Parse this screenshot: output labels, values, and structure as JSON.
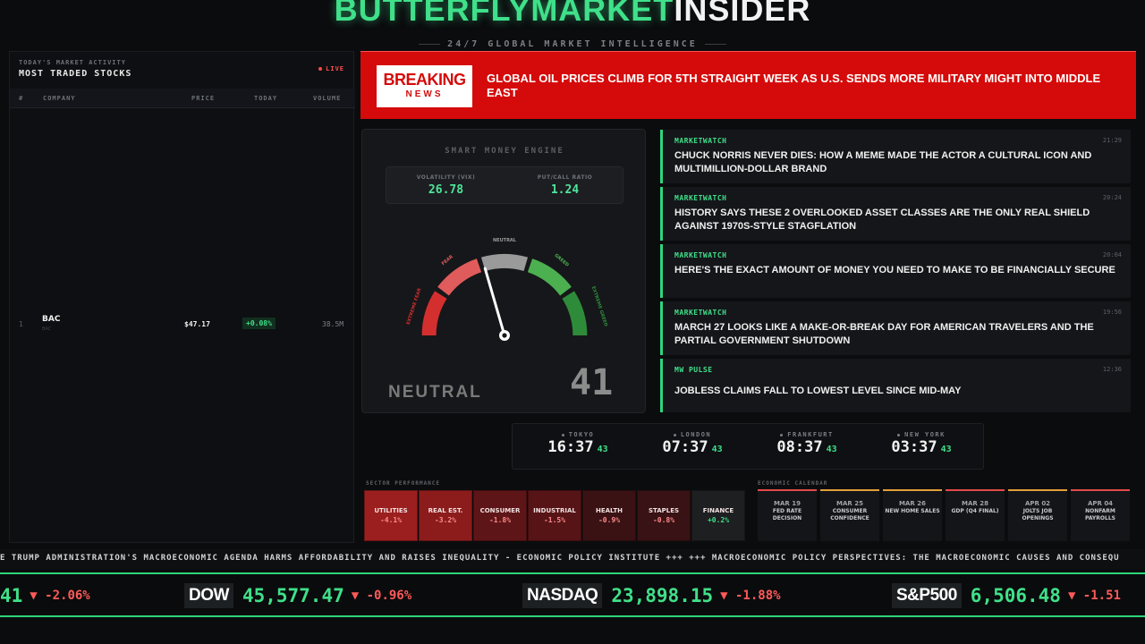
{
  "brand": {
    "green": "BUTTERFLYMARKET",
    "white": "INSIDER",
    "tagline": "24/7 GLOBAL MARKET INTELLIGENCE"
  },
  "left_panel": {
    "subtitle": "TODAY'S MARKET ACTIVITY",
    "title": "MOST TRADED STOCKS",
    "live": "LIVE",
    "columns": [
      "#",
      "COMPANY",
      "PRICE",
      "TODAY",
      "VOLUME"
    ],
    "rows": [
      {
        "rank": "1",
        "name": "BAC",
        "ticker": "BAC",
        "price": "$47.17",
        "change": "+0.08%",
        "volume": "38.5M"
      }
    ]
  },
  "breaking": {
    "label1": "BREAKING",
    "label2": "NEWS",
    "headline": "GLOBAL OIL PRICES CLIMB FOR 5TH STRAIGHT WEEK AS U.S. SENDS MORE MILITARY MIGHT INTO MIDDLE EAST"
  },
  "gauge": {
    "title": "SMART MONEY ENGINE",
    "vix_label": "VOLATILITY (VIX)",
    "vix_value": "26.78",
    "pc_label": "PUT/CALL RATIO",
    "pc_value": "1.24",
    "zones": [
      "EXTREME FEAR",
      "FEAR",
      "NEUTRAL",
      "GREED",
      "EXTREME GREED"
    ],
    "state": "NEUTRAL",
    "score": "41",
    "score_value": 41,
    "colors": {
      "extreme_fear": "#d42f2f",
      "fear": "#e05b5b",
      "neutral": "#9a9a9a",
      "greed": "#4caf50",
      "extreme_greed": "#2e8b3a"
    }
  },
  "news": [
    {
      "source": "MARKETWATCH",
      "time": "21:29",
      "headline": "CHUCK NORRIS NEVER DIES: HOW A MEME MADE THE ACTOR A CULTURAL ICON AND MULTIMILLION-DOLLAR BRAND"
    },
    {
      "source": "MARKETWATCH",
      "time": "20:24",
      "headline": "HISTORY SAYS THESE 2 OVERLOOKED ASSET CLASSES ARE THE ONLY REAL SHIELD AGAINST 1970S-STYLE STAGFLATION"
    },
    {
      "source": "MARKETWATCH",
      "time": "20:04",
      "headline": "HERE'S THE EXACT AMOUNT OF MONEY YOU NEED TO MAKE TO BE FINANCIALLY SECURE"
    },
    {
      "source": "MARKETWATCH",
      "time": "19:56",
      "headline": "MARCH 27 LOOKS LIKE A MAKE-OR-BREAK DAY FOR AMERICAN TRAVELERS AND THE PARTIAL GOVERNMENT SHUTDOWN"
    },
    {
      "source": "MW PULSE",
      "time": "12:36",
      "headline": "JOBLESS CLAIMS FALL TO LOWEST LEVEL SINCE MID-MAY"
    }
  ],
  "clocks": [
    {
      "city": "TOKYO",
      "time": "16:37",
      "seconds": "43"
    },
    {
      "city": "LONDON",
      "time": "07:37",
      "seconds": "43"
    },
    {
      "city": "FRANKFURT",
      "time": "08:37",
      "seconds": "43"
    },
    {
      "city": "NEW YORK",
      "time": "03:37",
      "seconds": "43"
    }
  ],
  "sectors": {
    "label": "SECTOR PERFORMANCE",
    "items": [
      {
        "name": "UTILITIES",
        "change": "-4.1%",
        "color": "#9b1f1f"
      },
      {
        "name": "REAL EST.",
        "change": "-3.2%",
        "color": "#8c1c1c"
      },
      {
        "name": "CONSUMER",
        "change": "-1.8%",
        "color": "#5e1517"
      },
      {
        "name": "INDUSTRIAL",
        "change": "-1.5%",
        "color": "#561416"
      },
      {
        "name": "HEALTH",
        "change": "-0.9%",
        "color": "#3a1214"
      },
      {
        "name": "STAPLES",
        "change": "-0.8%",
        "color": "#381214"
      },
      {
        "name": "FINANCE",
        "change": "+0.2%",
        "color": "#1d1f21"
      }
    ]
  },
  "calendar": {
    "label": "ECONOMIC CALENDAR",
    "items": [
      {
        "date": "MAR 19",
        "event": "FED RATE DECISION",
        "color": "#e24b4b"
      },
      {
        "date": "MAR 25",
        "event": "CONSUMER CONFIDENCE",
        "color": "#e2a03a"
      },
      {
        "date": "MAR 26",
        "event": "NEW HOME SALES",
        "color": "#e2a03a"
      },
      {
        "date": "MAR 28",
        "event": "GDP (Q4 FINAL)",
        "color": "#e24b4b"
      },
      {
        "date": "APR 02",
        "event": "JOLTS JOB OPENINGS",
        "color": "#e2a03a"
      },
      {
        "date": "APR 04",
        "event": "NONFARM PAYROLLS",
        "color": "#e24b4b"
      }
    ]
  },
  "ticker": {
    "text": "E TRUMP ADMINISTRATION'S MACROECONOMIC AGENDA HARMS AFFORDABILITY AND RAISES INEQUALITY - ECONOMIC POLICY INSTITUTE +++ +++ MACROECONOMIC POLICY PERSPECTIVES: THE MACROECONOMIC CAUSES AND CONSEQU"
  },
  "indices": [
    {
      "name": "",
      "value": "41",
      "change": "▼ -2.06%"
    },
    {
      "name": "DOW",
      "value": "45,577.47",
      "change": "▼ -0.96%"
    },
    {
      "name": "NASDAQ",
      "value": "23,898.15",
      "change": "▼ -1.88%"
    },
    {
      "name": "S&P500",
      "value": "6,506.48",
      "change": "▼ -1.51"
    }
  ]
}
